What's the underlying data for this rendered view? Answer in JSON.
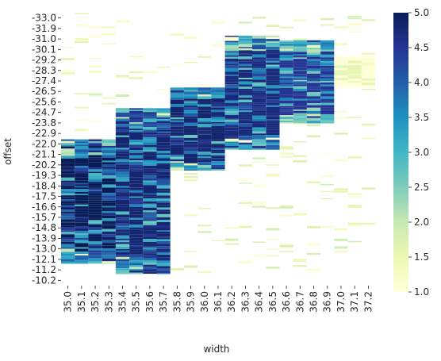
{
  "chart_data": {
    "type": "heatmap",
    "xlabel": "width",
    "ylabel": "offset",
    "x_ticks": [
      "35.0",
      "35.1",
      "35.2",
      "35.3",
      "35.4",
      "35.5",
      "35.6",
      "35.7",
      "35.8",
      "35.9",
      "36.0",
      "36.1",
      "36.2",
      "36.3",
      "36.4",
      "36.5",
      "36.6",
      "36.7",
      "36.8",
      "36.9",
      "37.0",
      "37.1",
      "37.2"
    ],
    "y_ticks": [
      "-33.0",
      "-31.9",
      "-31.0",
      "-30.1",
      "-29.2",
      "-28.3",
      "-27.4",
      "-26.5",
      "-25.6",
      "-24.7",
      "-23.8",
      "-22.9",
      "-22.0",
      "-21.1",
      "-20.2",
      "-19.3",
      "-18.4",
      "-17.5",
      "-16.6",
      "-15.7",
      "-14.8",
      "-13.9",
      "-13.0",
      "-12.1",
      "-11.2",
      "-10.2"
    ],
    "colorbar": {
      "min": 1.0,
      "max": 5.0,
      "ticks": [
        "1.0",
        "1.5",
        "2.0",
        "2.5",
        "3.0",
        "3.5",
        "4.0",
        "4.5",
        "5.0"
      ],
      "colormap": "YlGnBu",
      "stops": [
        "#ffffd9",
        "#edf8b1",
        "#c7e9b4",
        "#7fcdbb",
        "#41b6c4",
        "#1d91c0",
        "#225ea8",
        "#253494",
        "#081d58"
      ]
    },
    "value_range": [
      1.0,
      5.0
    ],
    "grid": false,
    "legend": "colorbar-right",
    "regions": [
      {
        "columns": [
          "35.0",
          "35.4"
        ],
        "offset_range": [
          -22.0,
          -12.1
        ],
        "value": 5.0
      },
      {
        "columns": [
          "35.4",
          "35.8"
        ],
        "offset_range": [
          -24.7,
          -11.2
        ],
        "value": 4.8
      },
      {
        "columns": [
          "35.8",
          "36.2"
        ],
        "offset_range": [
          -26.5,
          -20.2
        ],
        "value": 4.8
      },
      {
        "columns": [
          "36.2",
          "36.6"
        ],
        "offset_range": [
          -31.0,
          -22.0
        ],
        "value": 4.7
      },
      {
        "columns": [
          "36.6",
          "37.0"
        ],
        "offset_range": [
          -30.6,
          -24.3
        ],
        "value": 4.5
      },
      {
        "columns": [
          "37.0",
          "37.3"
        ],
        "offset_range": [
          -29.2,
          -27.4
        ],
        "value": 1.6
      }
    ]
  }
}
